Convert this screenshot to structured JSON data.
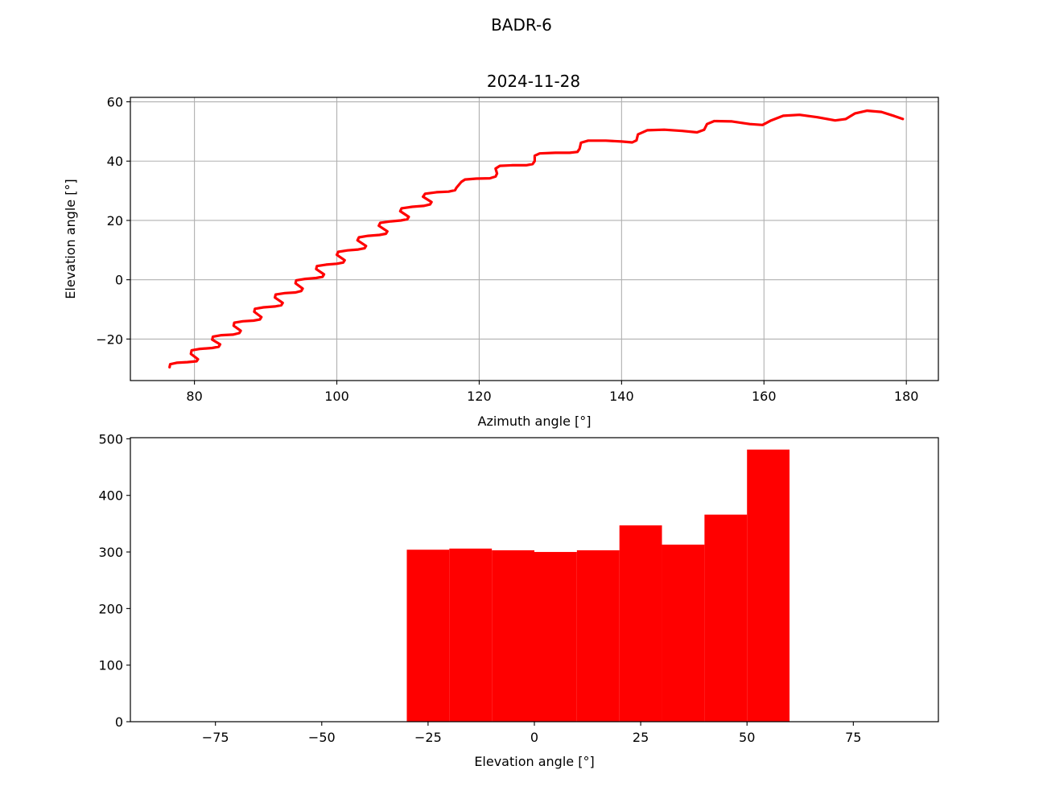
{
  "figure": {
    "suptitle": "BADR-6",
    "accent_color": "#ff0000"
  },
  "chart_data": [
    {
      "type": "line",
      "title": "2024-11-28",
      "xlabel": "Azimuth angle [°]",
      "ylabel": "Elevation angle [°]",
      "xlim": [
        71,
        184.5
      ],
      "ylim": [
        -34,
        61.5
      ],
      "xticks": [
        80,
        100,
        120,
        140,
        160,
        180
      ],
      "xtick_labels": [
        "80",
        "100",
        "120",
        "140",
        "160",
        "180"
      ],
      "yticks": [
        -20,
        0,
        20,
        40,
        60
      ],
      "ytick_labels": [
        "−20",
        "0",
        "20",
        "40",
        "60"
      ],
      "grid": true,
      "legend": "none",
      "series": [
        {
          "color": "#ff0000",
          "points": [
            [
              76.5,
              -29.5
            ],
            [
              76.6,
              -28.5
            ],
            [
              77.5,
              -28.0
            ],
            [
              79.0,
              -27.8
            ],
            [
              80.3,
              -27.5
            ],
            [
              80.5,
              -26.8
            ],
            [
              79.5,
              -25.0
            ],
            [
              79.6,
              -23.8
            ],
            [
              80.8,
              -23.3
            ],
            [
              82.5,
              -23.0
            ],
            [
              83.4,
              -22.6
            ],
            [
              83.6,
              -21.8
            ],
            [
              82.5,
              -20.2
            ],
            [
              82.6,
              -19.2
            ],
            [
              83.8,
              -18.7
            ],
            [
              85.4,
              -18.5
            ],
            [
              86.3,
              -18.0
            ],
            [
              86.5,
              -17.2
            ],
            [
              85.5,
              -15.5
            ],
            [
              85.6,
              -14.5
            ],
            [
              86.8,
              -14.0
            ],
            [
              88.3,
              -13.8
            ],
            [
              89.2,
              -13.4
            ],
            [
              89.4,
              -12.6
            ],
            [
              88.4,
              -10.8
            ],
            [
              88.5,
              -9.8
            ],
            [
              89.7,
              -9.3
            ],
            [
              91.3,
              -9.0
            ],
            [
              92.2,
              -8.6
            ],
            [
              92.4,
              -7.8
            ],
            [
              91.3,
              -6.0
            ],
            [
              91.4,
              -5.0
            ],
            [
              92.7,
              -4.5
            ],
            [
              94.2,
              -4.3
            ],
            [
              95.0,
              -3.8
            ],
            [
              95.2,
              -3.0
            ],
            [
              94.2,
              -1.2
            ],
            [
              94.3,
              -0.2
            ],
            [
              95.6,
              0.3
            ],
            [
              97.1,
              0.6
            ],
            [
              98.0,
              1.0
            ],
            [
              98.2,
              1.8
            ],
            [
              97.1,
              3.6
            ],
            [
              97.2,
              4.6
            ],
            [
              98.5,
              5.1
            ],
            [
              100.0,
              5.4
            ],
            [
              100.9,
              5.8
            ],
            [
              101.1,
              6.6
            ],
            [
              100.0,
              8.4
            ],
            [
              100.2,
              9.4
            ],
            [
              101.5,
              9.9
            ],
            [
              103.0,
              10.2
            ],
            [
              103.9,
              10.6
            ],
            [
              104.1,
              11.4
            ],
            [
              102.9,
              13.3
            ],
            [
              103.1,
              14.3
            ],
            [
              104.4,
              14.8
            ],
            [
              106.0,
              15.1
            ],
            [
              106.9,
              15.5
            ],
            [
              107.1,
              16.3
            ],
            [
              105.9,
              18.2
            ],
            [
              106.1,
              19.2
            ],
            [
              107.6,
              19.7
            ],
            [
              109.0,
              20.0
            ],
            [
              109.9,
              20.4
            ],
            [
              110.1,
              21.2
            ],
            [
              108.9,
              23.1
            ],
            [
              109.1,
              24.1
            ],
            [
              110.6,
              24.6
            ],
            [
              112.2,
              24.9
            ],
            [
              113.1,
              25.4
            ],
            [
              113.3,
              26.2
            ],
            [
              112.1,
              28.0
            ],
            [
              112.4,
              29.0
            ],
            [
              114.0,
              29.5
            ],
            [
              115.7,
              29.7
            ],
            [
              116.6,
              30.2
            ],
            [
              116.8,
              31.0
            ],
            [
              117.5,
              33.0
            ],
            [
              118.0,
              33.8
            ],
            [
              119.6,
              34.1
            ],
            [
              121.5,
              34.2
            ],
            [
              122.3,
              34.8
            ],
            [
              122.5,
              35.8
            ],
            [
              122.3,
              37.5
            ],
            [
              122.9,
              38.4
            ],
            [
              124.7,
              38.6
            ],
            [
              126.6,
              38.6
            ],
            [
              127.5,
              39.0
            ],
            [
              127.8,
              40.0
            ],
            [
              127.8,
              41.8
            ],
            [
              128.5,
              42.6
            ],
            [
              130.7,
              42.8
            ],
            [
              132.7,
              42.8
            ],
            [
              133.8,
              43.1
            ],
            [
              134.1,
              44.2
            ],
            [
              134.3,
              46.2
            ],
            [
              135.3,
              46.9
            ],
            [
              137.8,
              46.9
            ],
            [
              140.0,
              46.6
            ],
            [
              141.5,
              46.3
            ],
            [
              142.1,
              47.0
            ],
            [
              142.3,
              49.0
            ],
            [
              143.6,
              50.4
            ],
            [
              146.0,
              50.6
            ],
            [
              148.5,
              50.2
            ],
            [
              150.6,
              49.7
            ],
            [
              151.6,
              50.6
            ],
            [
              152.0,
              52.5
            ],
            [
              153.0,
              53.5
            ],
            [
              155.5,
              53.4
            ],
            [
              158.0,
              52.5
            ],
            [
              159.8,
              52.2
            ],
            [
              161.0,
              53.7
            ],
            [
              162.7,
              55.3
            ],
            [
              165.0,
              55.6
            ],
            [
              167.5,
              54.8
            ],
            [
              170.0,
              53.7
            ],
            [
              171.5,
              54.2
            ],
            [
              172.8,
              56.1
            ],
            [
              174.5,
              57.0
            ],
            [
              176.5,
              56.6
            ],
            [
              178.3,
              55.2
            ],
            [
              179.5,
              54.2
            ]
          ]
        }
      ]
    },
    {
      "type": "bar",
      "title": "",
      "xlabel": "Elevation angle [°]",
      "ylabel": "",
      "xlim": [
        -95,
        95
      ],
      "ylim": [
        0,
        502
      ],
      "xticks": [
        -75,
        -50,
        -25,
        0,
        25,
        50,
        75
      ],
      "xtick_labels": [
        "−75",
        "−50",
        "−25",
        "0",
        "25",
        "50",
        "75"
      ],
      "yticks": [
        0,
        100,
        200,
        300,
        400,
        500
      ],
      "ytick_labels": [
        "0",
        "100",
        "200",
        "300",
        "400",
        "500"
      ],
      "grid": false,
      "legend": "none",
      "bin_edges": [
        -30,
        -20,
        -10,
        0,
        10,
        20,
        30,
        40,
        50,
        60
      ],
      "values": [
        304,
        306,
        303,
        300,
        303,
        347,
        313,
        366,
        481
      ],
      "color": "#ff0000"
    }
  ]
}
